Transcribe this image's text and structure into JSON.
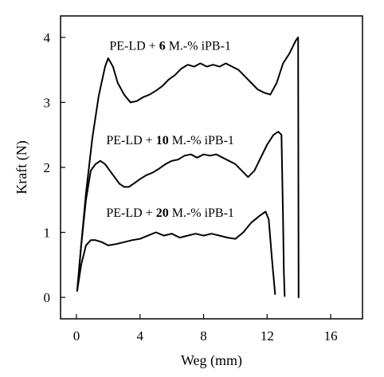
{
  "chart_data": {
    "type": "line",
    "title": "",
    "xlabel": "Weg (mm)",
    "ylabel": "Kraft (N)",
    "xlim": [
      -1,
      18
    ],
    "ylim": [
      -0.33,
      4.33
    ],
    "xticks": [
      0,
      4,
      8,
      12,
      16
    ],
    "yticks": [
      0,
      1,
      2,
      3,
      4
    ],
    "grid": false,
    "legend": "none",
    "series": [
      {
        "annotation": {
          "prefix": "PE-LD + ",
          "bold": "6",
          "suffix": " M.-% iPB-1",
          "x": 5.9,
          "y": 3.87
        },
        "x": [
          0.05,
          0.3,
          0.6,
          1.0,
          1.4,
          1.8,
          2.0,
          2.3,
          2.6,
          3.0,
          3.4,
          3.8,
          4.2,
          4.6,
          5.0,
          5.4,
          5.8,
          6.2,
          6.6,
          7.0,
          7.4,
          7.8,
          8.2,
          8.6,
          9.0,
          9.4,
          9.8,
          10.2,
          10.6,
          11.0,
          11.4,
          11.8,
          12.2,
          12.6,
          13.0,
          13.4,
          13.8,
          13.95,
          13.98
        ],
        "y": [
          0.1,
          0.8,
          1.6,
          2.45,
          3.1,
          3.55,
          3.68,
          3.55,
          3.3,
          3.12,
          3.0,
          3.02,
          3.08,
          3.12,
          3.18,
          3.25,
          3.35,
          3.42,
          3.52,
          3.58,
          3.55,
          3.6,
          3.55,
          3.58,
          3.55,
          3.6,
          3.55,
          3.5,
          3.4,
          3.3,
          3.2,
          3.15,
          3.12,
          3.3,
          3.6,
          3.75,
          3.95,
          4.0,
          0.0
        ]
      },
      {
        "annotation": {
          "prefix": "PE-LD + ",
          "bold": "10",
          "suffix": " M.-% iPB-1",
          "x": 5.9,
          "y": 2.42
        },
        "x": [
          0.05,
          0.3,
          0.6,
          0.9,
          1.2,
          1.5,
          1.8,
          2.1,
          2.4,
          2.7,
          3.0,
          3.3,
          3.6,
          4.0,
          4.4,
          4.8,
          5.2,
          5.6,
          6.0,
          6.4,
          6.8,
          7.2,
          7.6,
          8.0,
          8.4,
          8.8,
          9.2,
          9.6,
          10.0,
          10.4,
          10.8,
          11.2,
          11.6,
          12.0,
          12.4,
          12.7,
          12.9,
          13.0,
          13.05,
          13.1
        ],
        "y": [
          0.1,
          0.8,
          1.5,
          1.95,
          2.05,
          2.1,
          2.05,
          1.95,
          1.85,
          1.75,
          1.7,
          1.7,
          1.75,
          1.82,
          1.88,
          1.92,
          1.98,
          2.05,
          2.1,
          2.12,
          2.18,
          2.2,
          2.15,
          2.2,
          2.18,
          2.2,
          2.15,
          2.1,
          2.05,
          1.95,
          1.85,
          1.95,
          2.15,
          2.35,
          2.5,
          2.55,
          2.5,
          1.2,
          0.4,
          0.02
        ]
      },
      {
        "annotation": {
          "prefix": "PE-LD + ",
          "bold": "20",
          "suffix": " M.-% iPB-1",
          "x": 5.9,
          "y": 1.3
        },
        "x": [
          0.05,
          0.3,
          0.6,
          0.9,
          1.2,
          1.6,
          2.0,
          2.5,
          3.0,
          3.5,
          4.0,
          4.5,
          5.0,
          5.5,
          6.0,
          6.5,
          7.0,
          7.5,
          8.0,
          8.5,
          9.0,
          9.5,
          10.0,
          10.5,
          11.0,
          11.5,
          11.9,
          12.1,
          12.3,
          12.5
        ],
        "y": [
          0.1,
          0.5,
          0.8,
          0.88,
          0.88,
          0.85,
          0.8,
          0.82,
          0.85,
          0.88,
          0.9,
          0.95,
          1.0,
          0.95,
          0.98,
          0.92,
          0.95,
          0.98,
          0.95,
          0.98,
          0.95,
          0.92,
          0.9,
          1.0,
          1.15,
          1.25,
          1.32,
          1.2,
          0.6,
          0.05
        ]
      }
    ]
  }
}
